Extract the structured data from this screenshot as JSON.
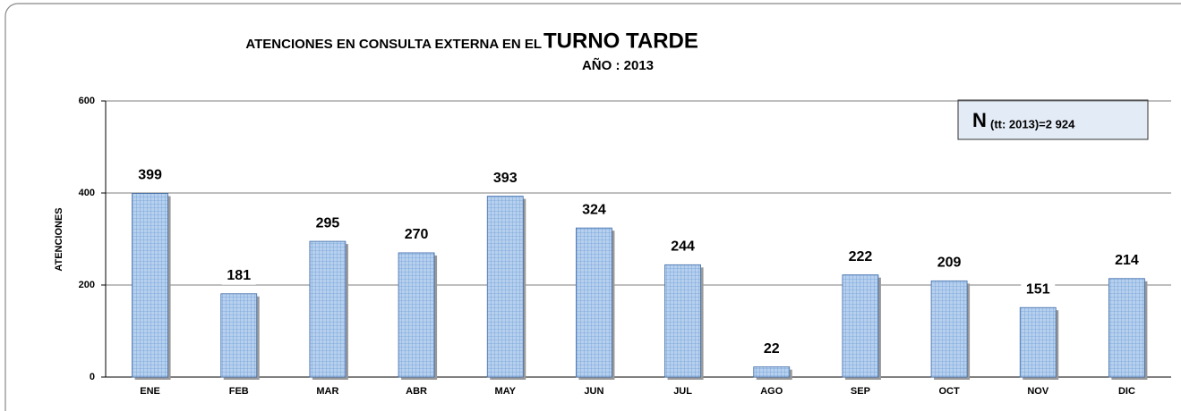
{
  "chart_data": {
    "type": "bar",
    "title": "ATENCIONES EN CONSULTA EXTERNA EN EL",
    "title_emphasis": "TURNO TARDE",
    "subtitle": "AÑO :  2013",
    "y_label": "ATENCIONES",
    "annotation": {
      "main": "N",
      "sub": "(tt: 2013)=2 924"
    },
    "categories": [
      "ENE",
      "FEB",
      "MAR",
      "ABR",
      "MAY",
      "JUN",
      "JUL",
      "AGO",
      "SEP",
      "OCT",
      "NOV",
      "DIC"
    ],
    "values": [
      399,
      181,
      295,
      270,
      393,
      324,
      244,
      22,
      222,
      209,
      151,
      214
    ],
    "color": "#b7d0ee",
    "ylim": [
      0,
      600
    ],
    "yticks": [
      0,
      200,
      400,
      600
    ],
    "grid": true
  }
}
